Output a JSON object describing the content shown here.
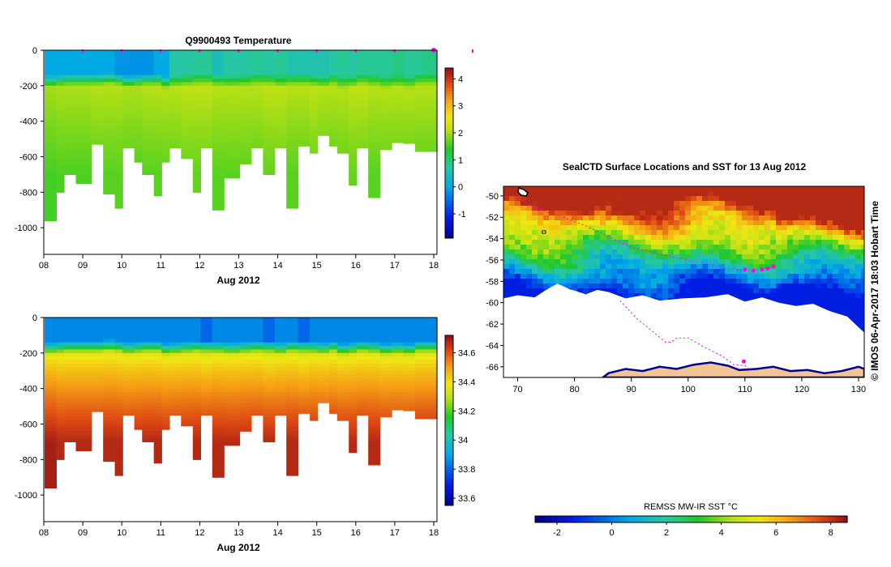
{
  "chart_data": [
    {
      "type": "heatmap",
      "title": "Q9900493  Temperature",
      "xlabel": "Aug 2012",
      "ylabel": "",
      "x_ticks": [
        "08",
        "09",
        "10",
        "11",
        "12",
        "13",
        "14",
        "15",
        "16",
        "17",
        "18"
      ],
      "y_ticks": [
        0,
        -200,
        -400,
        -600,
        -800,
        -1000
      ],
      "ylim": [
        -1150,
        0
      ],
      "colorbar_ticks": [
        4,
        3,
        2,
        1,
        0,
        -1
      ],
      "colorbar_range": [
        -1.9,
        4.4
      ],
      "profiles": {
        "day_offsets": [
          0.0,
          0.3,
          0.5,
          0.8,
          1.2,
          1.5,
          1.8,
          2.0,
          2.3,
          2.5,
          2.8,
          3.0,
          3.2,
          3.5,
          3.8,
          4.0,
          4.3,
          4.6,
          5.0,
          5.3,
          5.6,
          5.9,
          6.2,
          6.5,
          6.8,
          7.0,
          7.3,
          7.5,
          7.8,
          8.0,
          8.3,
          8.6,
          8.9,
          9.2,
          9.5,
          9.7
        ],
        "max_depth_m": [
          960,
          800,
          700,
          750,
          530,
          810,
          890,
          550,
          630,
          700,
          820,
          630,
          550,
          610,
          800,
          550,
          900,
          720,
          640,
          550,
          700,
          550,
          890,
          540,
          580,
          480,
          540,
          580,
          760,
          550,
          830,
          560,
          520,
          525,
          570,
          570
        ],
        "thermocline_depth_m": [
          160,
          155,
          150,
          150,
          150,
          145,
          150,
          160,
          155,
          150,
          150,
          165,
          160,
          155,
          150,
          150,
          155,
          160,
          155,
          150,
          150,
          160,
          150,
          150,
          155,
          160,
          150,
          165,
          160,
          150,
          155,
          165,
          160,
          165,
          150,
          150
        ],
        "surface_value": [
          0.0,
          0.0,
          0.0,
          0.0,
          0.0,
          0.0,
          -0.2,
          -0.2,
          -0.2,
          -0.2,
          0.0,
          0.0,
          0.7,
          0.7,
          0.8,
          0.8,
          0.5,
          0.7,
          0.7,
          0.8,
          0.7,
          0.8,
          0.6,
          0.6,
          0.6,
          0.6,
          0.7,
          0.8,
          0.7,
          0.8,
          0.8,
          0.8,
          0.9,
          0.8,
          0.8,
          0.9
        ],
        "deep_value": [
          1.7,
          1.75,
          1.75,
          1.75,
          1.8,
          1.8,
          1.8,
          1.75,
          1.75,
          1.8,
          1.8,
          1.8,
          1.8,
          1.85,
          1.85,
          1.85,
          1.8,
          1.8,
          1.8,
          1.8,
          1.85,
          1.85,
          1.8,
          1.8,
          1.85,
          1.8,
          1.8,
          1.8,
          1.85,
          1.85,
          1.8,
          1.8,
          1.8,
          1.8,
          1.8,
          1.8
        ]
      }
    },
    {
      "type": "heatmap",
      "title": "",
      "xlabel": "Aug 2012",
      "ylabel": "",
      "x_ticks": [
        "08",
        "09",
        "10",
        "11",
        "12",
        "13",
        "14",
        "15",
        "16",
        "17",
        "18"
      ],
      "y_ticks": [
        0,
        -200,
        -400,
        -600,
        -800,
        -1000
      ],
      "ylim": [
        -1150,
        0
      ],
      "colorbar_ticks": [
        "34.6",
        "34.4",
        "34.2",
        "34",
        "33.8",
        "33.6"
      ],
      "colorbar_range": [
        33.55,
        34.72
      ],
      "profiles": {
        "day_offsets": [
          0.0,
          0.3,
          0.5,
          0.8,
          1.2,
          1.5,
          1.8,
          2.0,
          2.3,
          2.5,
          2.8,
          3.0,
          3.2,
          3.5,
          3.8,
          4.0,
          4.3,
          4.6,
          5.0,
          5.3,
          5.6,
          5.9,
          6.2,
          6.5,
          6.8,
          7.0,
          7.3,
          7.5,
          7.8,
          8.0,
          8.3,
          8.6,
          8.9,
          9.2,
          9.5,
          9.7
        ],
        "max_depth_m": [
          960,
          800,
          700,
          750,
          530,
          810,
          890,
          550,
          630,
          700,
          820,
          630,
          550,
          610,
          800,
          550,
          900,
          720,
          640,
          550,
          700,
          550,
          890,
          540,
          580,
          480,
          540,
          580,
          760,
          550,
          830,
          560,
          520,
          525,
          570,
          570
        ],
        "thermocline_depth_m": [
          160,
          155,
          150,
          150,
          150,
          145,
          150,
          160,
          155,
          150,
          150,
          165,
          160,
          155,
          150,
          150,
          155,
          160,
          155,
          150,
          150,
          160,
          150,
          150,
          155,
          160,
          150,
          165,
          160,
          150,
          155,
          165,
          160,
          165,
          150,
          150
        ],
        "surface_value": [
          33.85,
          33.85,
          33.85,
          33.85,
          33.85,
          33.85,
          33.85,
          33.85,
          33.85,
          33.85,
          33.85,
          33.85,
          33.85,
          33.85,
          33.85,
          33.8,
          33.85,
          33.85,
          33.85,
          33.85,
          33.8,
          33.85,
          33.85,
          33.8,
          33.85,
          33.85,
          33.85,
          33.85,
          33.85,
          33.85,
          33.85,
          33.85,
          33.85,
          33.85,
          33.85,
          33.85
        ],
        "deep_value": [
          34.7,
          34.68,
          34.68,
          34.68,
          34.68,
          34.68,
          34.68,
          34.68,
          34.68,
          34.68,
          34.68,
          34.68,
          34.68,
          34.68,
          34.68,
          34.68,
          34.68,
          34.68,
          34.68,
          34.68,
          34.68,
          34.68,
          34.68,
          34.68,
          34.68,
          34.68,
          34.68,
          34.68,
          34.68,
          34.68,
          34.68,
          34.68,
          34.68,
          34.68,
          34.68,
          34.68
        ]
      }
    },
    {
      "type": "map",
      "title": "SealCTD Surface Locations and SST for 13 Aug 2012",
      "xlabel": "",
      "ylabel": "",
      "x_ticks": [
        "70",
        "80",
        "90",
        "100",
        "110",
        "120",
        "130"
      ],
      "x_tick_values": [
        70,
        80,
        90,
        100,
        110,
        120,
        130
      ],
      "y_ticks": [
        "-50",
        "-52",
        "-54",
        "-56",
        "-58",
        "-60",
        "-62",
        "-64",
        "-66"
      ],
      "y_tick_values": [
        -50,
        -52,
        -54,
        -56,
        -58,
        -60,
        -62,
        -64,
        -66
      ],
      "xlim": [
        67.5,
        131
      ],
      "ylim": [
        -67,
        -49.1
      ],
      "colorbar_label": "REMSS MW-IR SST °C",
      "colorbar_ticks": [
        "-2",
        "0",
        "2",
        "4",
        "6",
        "8"
      ],
      "colorbar_tick_values": [
        -2,
        0,
        2,
        4,
        6,
        8
      ],
      "colorbar_range": [
        -2.8,
        8.6
      ],
      "seal_track_lonlat": [
        [
          69.5,
          -50.0
        ],
        [
          72,
          -50.8
        ],
        [
          75,
          -51.5
        ],
        [
          78,
          -52.0
        ],
        [
          82,
          -52.8
        ],
        [
          86,
          -53.8
        ],
        [
          90,
          -54.8
        ],
        [
          94,
          -55.3
        ],
        [
          98,
          -55.8
        ],
        [
          102,
          -56.2
        ],
        [
          105,
          -56.6
        ],
        [
          108,
          -56.9
        ],
        [
          111,
          -57.0
        ],
        [
          113,
          -56.9
        ],
        [
          115,
          -56.6
        ]
      ],
      "seal_track_south_lonlat": [
        [
          88,
          -59.8
        ],
        [
          91,
          -61.5
        ],
        [
          94,
          -62.8
        ],
        [
          96,
          -63.7
        ],
        [
          97,
          -63.7
        ],
        [
          98,
          -63.3
        ],
        [
          100,
          -63.3
        ],
        [
          103,
          -64.2
        ],
        [
          106,
          -65.0
        ],
        [
          108,
          -65.8
        ],
        [
          110,
          -65.9
        ],
        [
          111,
          -66.3
        ]
      ],
      "recent_locations_lonlat": [
        [
          110,
          -56.9
        ],
        [
          111.5,
          -57.0
        ],
        [
          113,
          -56.9
        ],
        [
          114,
          -56.8
        ],
        [
          115,
          -56.6
        ],
        [
          109.8,
          -65.5
        ]
      ]
    }
  ],
  "side_label": "© IMOS 06-Apr-2017 18:03 Hobart Time",
  "colors": {
    "track": "#ff00ff",
    "land": "#f2c594",
    "coast": "#00008c"
  }
}
